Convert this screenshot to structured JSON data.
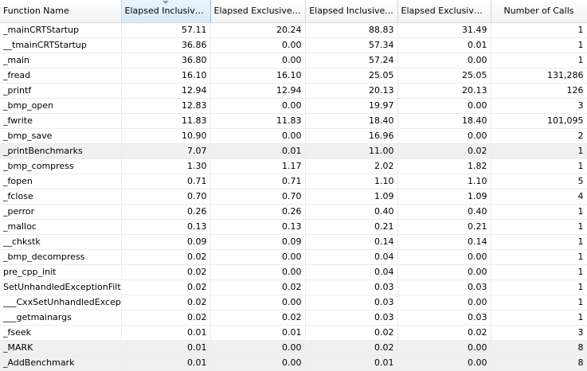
{
  "columns": [
    {
      "label": "Function Name",
      "align": "left"
    },
    {
      "label": "Elapsed Inclusive...",
      "align": "center",
      "sorted": true
    },
    {
      "label": "Elapsed Exclusive ...",
      "align": "center"
    },
    {
      "label": "Elapsed Inclusive...",
      "align": "center"
    },
    {
      "label": "Elapsed Exclusive ...",
      "align": "center"
    },
    {
      "label": "Number of Calls",
      "align": "center"
    }
  ],
  "rows": [
    {
      "cells": [
        "_mainCRTStartup",
        "57.11",
        "20.24",
        "88.83",
        "31.49",
        "1"
      ]
    },
    {
      "cells": [
        "__tmainCRTStartup",
        "36.86",
        "0.00",
        "57.34",
        "0.01",
        "1"
      ]
    },
    {
      "cells": [
        "_main",
        "36.80",
        "0.00",
        "57.24",
        "0.00",
        "1"
      ]
    },
    {
      "cells": [
        "_fread",
        "16.10",
        "16.10",
        "25.05",
        "25.05",
        "131,286"
      ]
    },
    {
      "cells": [
        "_printf",
        "12.94",
        "12.94",
        "20.13",
        "20.13",
        "126"
      ]
    },
    {
      "cells": [
        "_bmp_open",
        "12.83",
        "0.00",
        "19.97",
        "0.00",
        "3"
      ]
    },
    {
      "cells": [
        "_fwrite",
        "11.83",
        "11.83",
        "18.40",
        "18.40",
        "101,095"
      ]
    },
    {
      "cells": [
        "_bmp_save",
        "10.90",
        "0.00",
        "16.96",
        "0.00",
        "2"
      ]
    },
    {
      "cells": [
        "_printBenchmarks",
        "7.07",
        "0.01",
        "11.00",
        "0.02",
        "1"
      ],
      "highlight": true
    },
    {
      "cells": [
        "_bmp_compress",
        "1.30",
        "1.17",
        "2.02",
        "1.82",
        "1"
      ]
    },
    {
      "cells": [
        "_fopen",
        "0.71",
        "0.71",
        "1.10",
        "1.10",
        "5"
      ]
    },
    {
      "cells": [
        "_fclose",
        "0.70",
        "0.70",
        "1.09",
        "1.09",
        "4"
      ]
    },
    {
      "cells": [
        "_perror",
        "0.26",
        "0.26",
        "0.40",
        "0.40",
        "1"
      ]
    },
    {
      "cells": [
        "_malloc",
        "0.13",
        "0.13",
        "0.21",
        "0.21",
        "1"
      ]
    },
    {
      "cells": [
        "__chkstk",
        "0.09",
        "0.09",
        "0.14",
        "0.14",
        "1"
      ]
    },
    {
      "cells": [
        "_bmp_decompress",
        "0.02",
        "0.00",
        "0.04",
        "0.00",
        "1"
      ]
    },
    {
      "cells": [
        "pre_cpp_init",
        "0.02",
        "0.00",
        "0.04",
        "0.00",
        "1"
      ]
    },
    {
      "cells": [
        "SetUnhandledExceptionFilte",
        "0.02",
        "0.02",
        "0.03",
        "0.03",
        "1"
      ]
    },
    {
      "cells": [
        "___CxxSetUnhandledExceptio",
        "0.02",
        "0.00",
        "0.03",
        "0.00",
        "1"
      ]
    },
    {
      "cells": [
        "___getmainargs",
        "0.02",
        "0.02",
        "0.03",
        "0.03",
        "1"
      ]
    },
    {
      "cells": [
        "_fseek",
        "0.01",
        "0.01",
        "0.02",
        "0.02",
        "3"
      ]
    },
    {
      "cells": [
        "_MARK",
        "0.01",
        "0.00",
        "0.02",
        "0.00",
        "8"
      ],
      "highlight": true
    },
    {
      "cells": [
        "_AddBenchmark",
        "0.01",
        "0.00",
        "0.01",
        "0.00",
        "8"
      ],
      "highlight": true
    }
  ]
}
